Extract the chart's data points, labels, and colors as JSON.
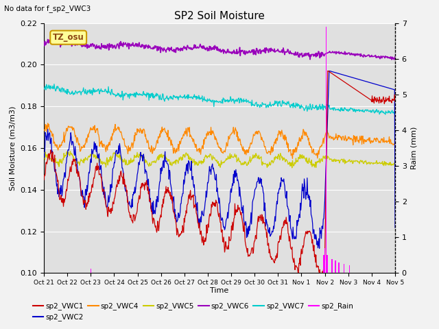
{
  "title": "SP2 Soil Moisture",
  "subtitle": "No data for f_sp2_VWC3",
  "xlabel": "Time",
  "ylabel_left": "Soil Moisture (m3/m3)",
  "ylabel_right": "Raim (mm)",
  "tz_label": "TZ_osu",
  "ylim_left": [
    0.1,
    0.22
  ],
  "ylim_right": [
    0.0,
    7.0
  ],
  "plot_bg_color": "#e0e0e0",
  "fig_bg_color": "#f2f2f2",
  "colors": {
    "sp2_VWC1": "#cc0000",
    "sp2_VWC2": "#0000cc",
    "sp2_VWC4": "#ff8800",
    "sp2_VWC5": "#cccc00",
    "sp2_VWC6": "#9900bb",
    "sp2_VWC7": "#00cccc",
    "sp2_Rain": "#ff00ff"
  },
  "x_tick_labels": [
    "Oct 21",
    "Oct 22",
    "Oct 23",
    "Oct 24",
    "Oct 25",
    "Oct 26",
    "Oct 27",
    "Oct 28",
    "Oct 29",
    "Oct 30",
    "Oct 31",
    "Nov 1",
    "Nov 2",
    "Nov 3",
    "Nov 4",
    "Nov 5"
  ],
  "num_points": 720
}
